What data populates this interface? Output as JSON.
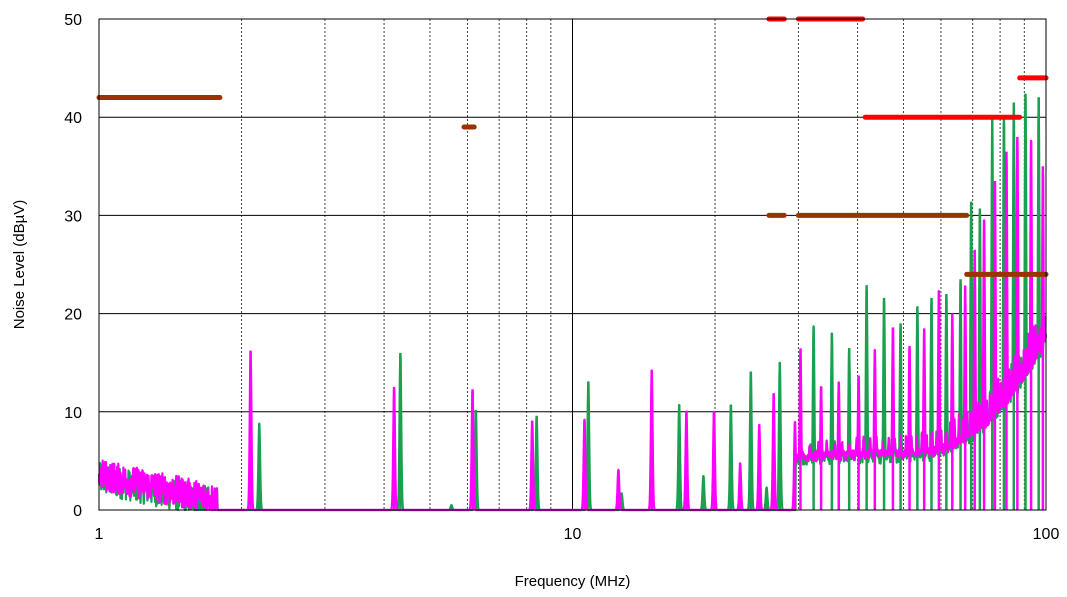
{
  "chart_data": {
    "type": "line",
    "title": "",
    "xlabel": "Frequency (MHz)",
    "ylabel": "Noise Level (dBµV)",
    "xscale": "log",
    "xlim": [
      1,
      100
    ],
    "ylim": [
      0,
      50
    ],
    "x_tick_labels": [
      "1",
      "10",
      "100"
    ],
    "x_ticks": [
      1,
      10,
      100
    ],
    "y_tick_labels": [
      "0",
      "10",
      "20",
      "30",
      "40",
      "50"
    ],
    "y_ticks": [
      0,
      10,
      20,
      30,
      40,
      50
    ],
    "grid": "major y lines and minor logarithmic x lines, dashed vertical",
    "legend": "none",
    "colors": {
      "green_trace": "#1aa04f",
      "magenta_trace": "#ff00ff",
      "red_limit": "#ff0000",
      "brown_limit": "#9a3300",
      "grid": "#000000",
      "background": "#ffffff"
    },
    "limit_lines": [
      {
        "color": "red",
        "segments": [
          {
            "x": [
              26,
              28
            ],
            "y": 50
          },
          {
            "x": [
              30,
              41
            ],
            "y": 50
          },
          {
            "x": [
              41.5,
              88
            ],
            "y": 40
          },
          {
            "x": [
              88,
              100
            ],
            "y": 44
          }
        ]
      },
      {
        "color": "brown",
        "segments": [
          {
            "x": [
              1,
              1.8
            ],
            "y": 42
          },
          {
            "x": [
              5.9,
              6.2
            ],
            "y": 39
          },
          {
            "x": [
              26,
              28
            ],
            "y": 30
          },
          {
            "x": [
              30,
              68
            ],
            "y": 30
          },
          {
            "x": [
              68,
              100
            ],
            "y": 24
          }
        ]
      }
    ],
    "series": [
      {
        "color": "green",
        "peaks": [
          [
            2.18,
            8.8
          ],
          [
            4.33,
            16
          ],
          [
            5.55,
            0.5
          ],
          [
            6.25,
            10.2
          ],
          [
            8.4,
            9.6
          ],
          [
            10.8,
            13.1
          ],
          [
            12.7,
            1.7
          ],
          [
            16.8,
            10.7
          ],
          [
            18.9,
            3.5
          ],
          [
            21.6,
            10.7
          ],
          [
            23.8,
            14.1
          ],
          [
            25.7,
            2.3
          ],
          [
            27.4,
            15
          ],
          [
            32.3,
            18.7
          ],
          [
            35.3,
            18
          ],
          [
            38.4,
            16.5
          ],
          [
            41.8,
            22.9
          ],
          [
            45.5,
            21.6
          ],
          [
            49.3,
            19
          ],
          [
            53.5,
            20.7
          ],
          [
            57.3,
            21.6
          ],
          [
            61.6,
            22
          ],
          [
            66,
            23.5
          ],
          [
            69.5,
            31.4
          ],
          [
            72.5,
            30.7
          ],
          [
            77,
            40
          ],
          [
            81.5,
            40.2
          ],
          [
            85.5,
            41.5
          ],
          [
            90.5,
            42.4
          ],
          [
            96.5,
            42
          ]
        ]
      },
      {
        "color": "magenta",
        "peaks": [
          [
            2.09,
            16.2
          ],
          [
            4.2,
            12.5
          ],
          [
            6.15,
            12.3
          ],
          [
            8.22,
            9.1
          ],
          [
            10.6,
            9.2
          ],
          [
            12.5,
            4.1
          ],
          [
            14.7,
            14.3
          ],
          [
            17.4,
            10.1
          ],
          [
            19.9,
            10.1
          ],
          [
            22.6,
            4.8
          ],
          [
            24.8,
            8.7
          ],
          [
            26.6,
            11.9
          ],
          [
            29.5,
            9
          ],
          [
            30.3,
            16.4
          ],
          [
            33.5,
            12.6
          ],
          [
            36.5,
            13
          ],
          [
            40.2,
            13.7
          ],
          [
            43.5,
            16.3
          ],
          [
            47.5,
            18.6
          ],
          [
            51.5,
            16.7
          ],
          [
            55.3,
            18.5
          ],
          [
            59.4,
            22.3
          ],
          [
            63.4,
            20
          ],
          [
            67.5,
            22.8
          ],
          [
            70.7,
            26.5
          ],
          [
            74,
            29.5
          ],
          [
            78,
            33.5
          ],
          [
            82.5,
            36.5
          ],
          [
            87,
            38
          ],
          [
            93,
            37.6
          ],
          [
            98.5,
            35
          ]
        ]
      }
    ]
  }
}
